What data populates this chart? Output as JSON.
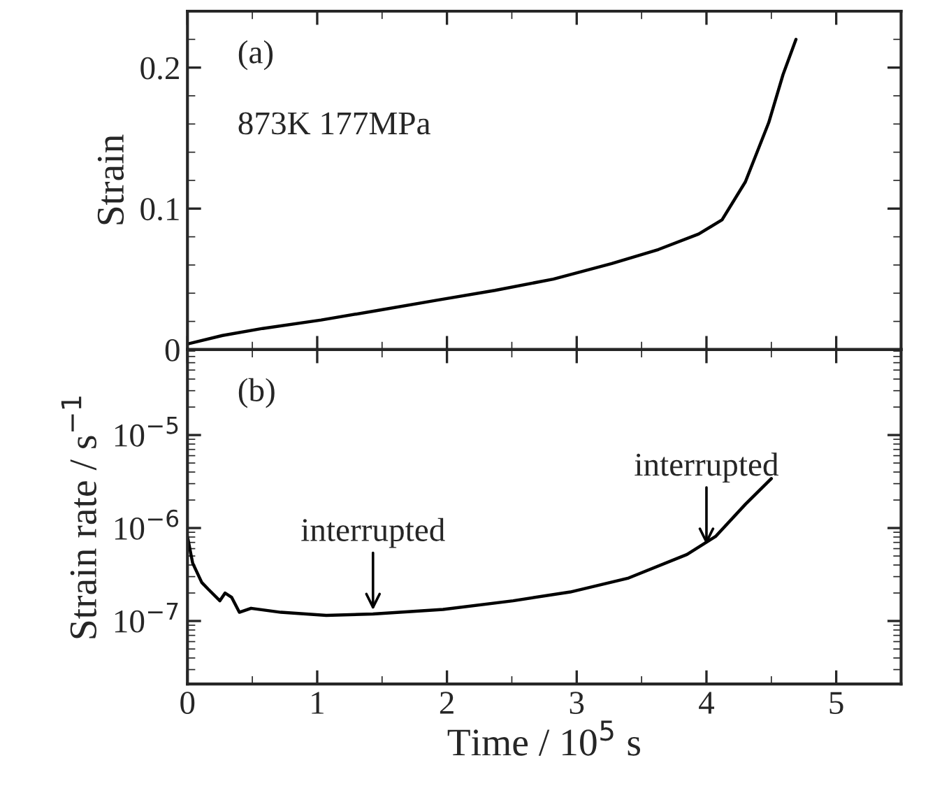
{
  "chart_data": [
    {
      "type": "line",
      "ylabel": "Strain",
      "annotations": [
        "(a)",
        "873K 177MPa"
      ],
      "tick_labels": "y",
      "xlim": [
        0,
        5.5
      ],
      "xticks": [
        0,
        1,
        2,
        3,
        4,
        5
      ],
      "ylim": [
        0,
        0.24
      ],
      "yticks": [
        0,
        0.1,
        0.2
      ],
      "marker": "none",
      "line_style": "solid",
      "grid": false,
      "legend": false,
      "x": [
        0,
        0.27,
        0.58,
        1.03,
        1.48,
        1.92,
        2.37,
        2.82,
        3.27,
        3.63,
        3.94,
        4.12,
        4.3,
        4.48,
        4.59,
        4.69
      ],
      "series": [
        {
          "color": "#000000",
          "values": [
            0.004,
            0.01,
            0.015,
            0.021,
            0.028,
            0.035,
            0.042,
            0.05,
            0.061,
            0.071,
            0.082,
            0.092,
            0.119,
            0.161,
            0.195,
            0.22
          ]
        }
      ]
    },
    {
      "type": "line",
      "xlabel": "Time / 10$^{5}$ s",
      "ylabel": "Strain rate / s$^{−1}$",
      "log": "y",
      "xlim": [
        0,
        5.5
      ],
      "xticks": [
        0,
        1,
        2,
        3,
        4,
        5
      ],
      "ylim": [
        2.1e-08,
        8.3e-05
      ],
      "yticks": [
        {
          "value": 1e-07,
          "label": "10$^{−7}$"
        },
        {
          "value": 1e-06,
          "label": "10$^{−6}$"
        },
        {
          "value": 1e-05,
          "label": "10$^{−5}$"
        }
      ],
      "marker": "none",
      "line_style": "solid",
      "grid": false,
      "legend": false,
      "annotations": [
        "(b)",
        {
          "text": "interrupted",
          "x": 1.43,
          "y": 1.19e-07
        },
        {
          "text": "interrupted",
          "x": 4.0,
          "y": 6e-07
        }
      ],
      "x": [
        0,
        0.04,
        0.11,
        0.16,
        0.25,
        0.29,
        0.34,
        0.4,
        0.49,
        0.72,
        1.07,
        1.43,
        1.97,
        2.51,
        2.95,
        3.4,
        3.85,
        4.07,
        4.3,
        4.5
      ],
      "series": [
        {
          "color": "#000000",
          "values": [
            8.1e-07,
            4.2e-07,
            2.6e-07,
            2.2e-07,
            1.65e-07,
            2e-07,
            1.8e-07,
            1.24e-07,
            1.37e-07,
            1.24e-07,
            1.15e-07,
            1.19e-07,
            1.33e-07,
            1.65e-07,
            2.05e-07,
            2.9e-07,
            5.2e-07,
            8.1e-07,
            1.8e-06,
            3.4e-06
          ]
        }
      ]
    }
  ]
}
